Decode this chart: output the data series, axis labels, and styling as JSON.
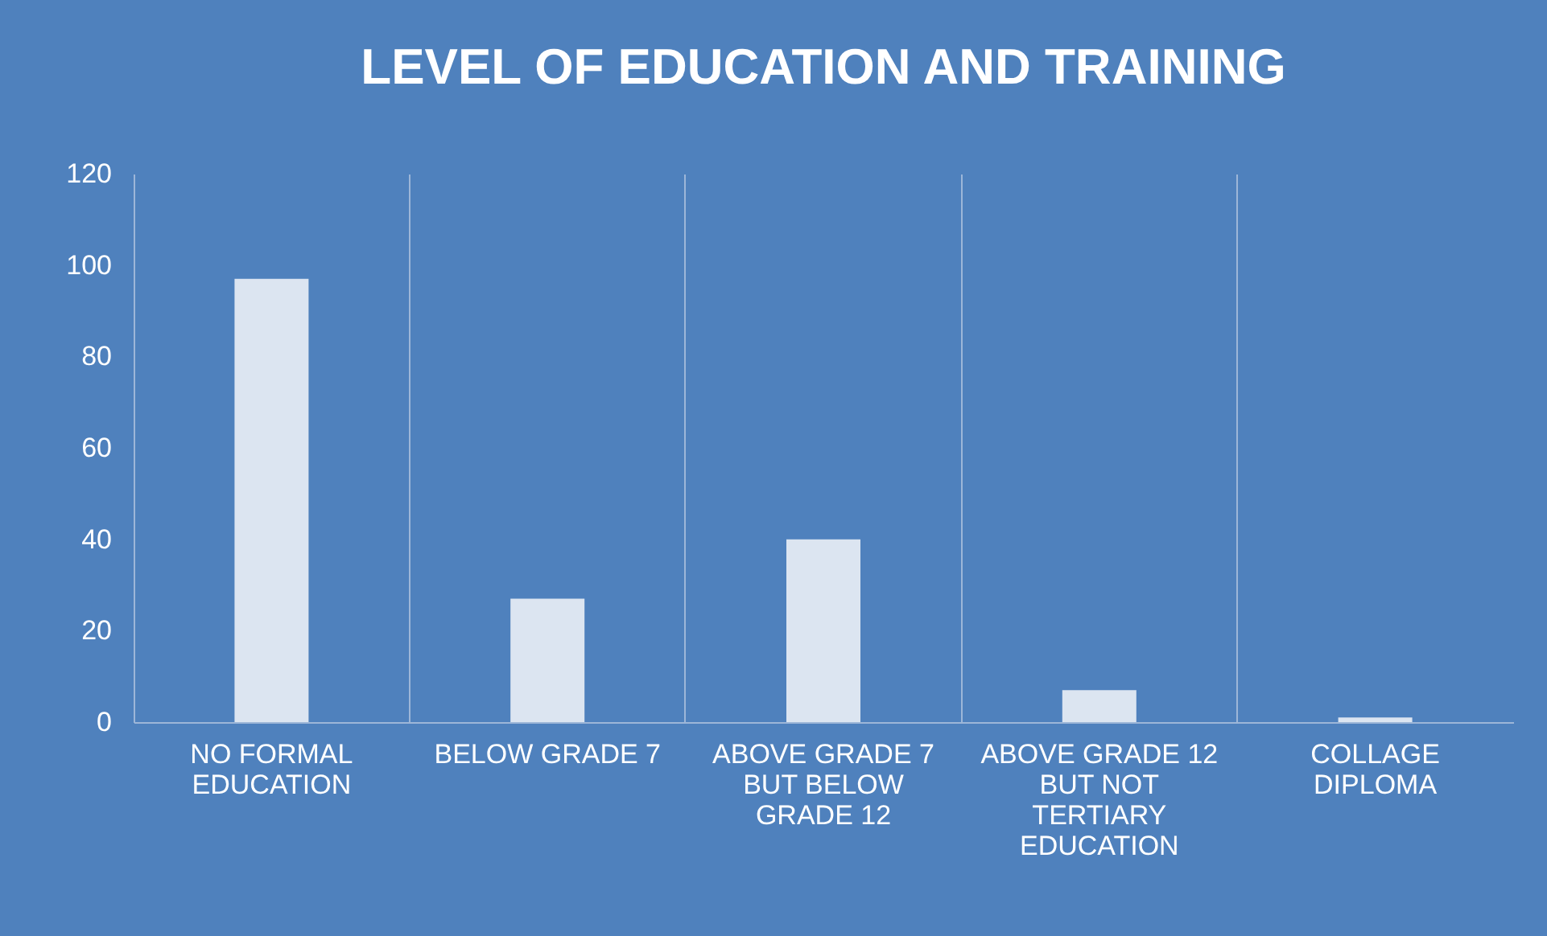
{
  "chart_data": {
    "type": "bar",
    "title": "LEVEL OF EDUCATION AND TRAINING",
    "categories": [
      "NO FORMAL EDUCATION",
      "BELOW GRADE 7",
      "ABOVE GRADE 7 BUT BELOW GRADE 12",
      "ABOVE GRADE 12 BUT NOT TERTIARY EDUCATION",
      "COLLAGE DIPLOMA"
    ],
    "values": [
      97,
      27,
      40,
      7,
      1
    ],
    "color": "#dce5f1",
    "ylim": [
      0,
      120
    ],
    "yticks": [
      0,
      20,
      40,
      60,
      80,
      100,
      120
    ],
    "grid": "x"
  }
}
